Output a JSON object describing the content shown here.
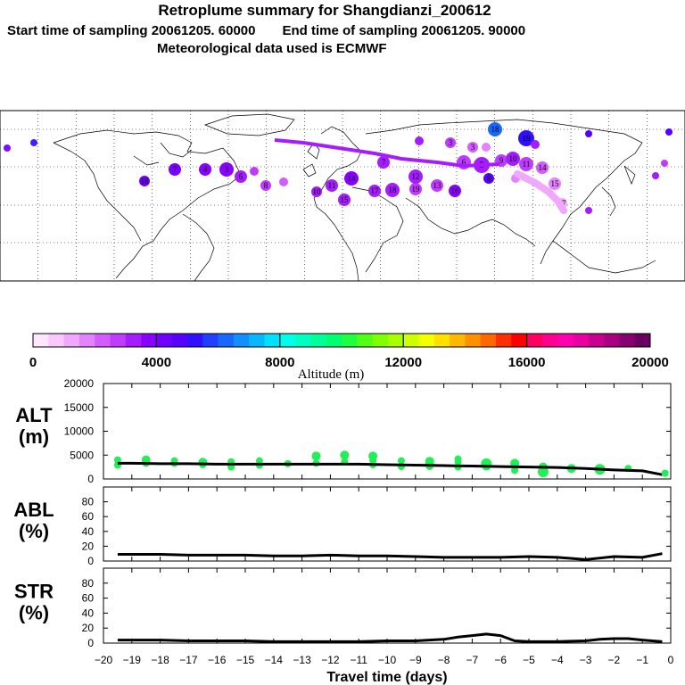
{
  "header": {
    "title": "Retroplume summary for Shangdianzi_200612",
    "start_label": "Start time of sampling 20061205. 60000",
    "end_label": "End time of sampling 20061205. 90000",
    "met_label": "Meteorological data used is ECMWF"
  },
  "colorbar": {
    "label": "Altitude (m)",
    "tick_labels": [
      "0",
      "4000",
      "8000",
      "12000",
      "16000",
      "20000"
    ],
    "colors": [
      "#ffe6ff",
      "#f8c8ff",
      "#f0a8ff",
      "#e383ff",
      "#d35cff",
      "#bf3cff",
      "#a51cff",
      "#8a00ff",
      "#7000ff",
      "#5800ff",
      "#3010ff",
      "#2040ff",
      "#1868ff",
      "#1090ff",
      "#08b8ff",
      "#00e0ff",
      "#00ffe8",
      "#00ffc0",
      "#00ff98",
      "#00ff70",
      "#20ff40",
      "#50ff18",
      "#80ff00",
      "#a8ff00",
      "#d0ff00",
      "#f4ff00",
      "#ffe000",
      "#ffb800",
      "#ff9000",
      "#ff6800",
      "#ff3000",
      "#ff0000",
      "#ff0060",
      "#ff0090",
      "#ff00b0",
      "#e800a0",
      "#c80090",
      "#a80080",
      "#880070",
      "#680060"
    ]
  },
  "map": {
    "grid": "lat-lon",
    "markers": [
      "12",
      "13",
      "16",
      "7",
      "4",
      "3",
      "6",
      "5",
      "8",
      "9",
      "10",
      "11",
      "14",
      "15",
      "17",
      "18",
      "19"
    ]
  },
  "chart_data": [
    {
      "type": "line",
      "name": "ALT",
      "ylabel": "ALT (m)",
      "ylabel_parts": [
        "ALT",
        "(m)"
      ],
      "ylim": [
        0,
        20000
      ],
      "yticks": [
        0,
        5000,
        10000,
        15000,
        20000
      ],
      "x": [
        -19.5,
        -19,
        -18,
        -17,
        -16,
        -15,
        -14,
        -13,
        -12,
        -11,
        -10,
        -9,
        -8,
        -7,
        -6,
        -5,
        -4,
        -3,
        -2,
        -1,
        -0.3
      ],
      "series": [
        {
          "name": "mean",
          "values": [
            3300,
            3300,
            3200,
            3200,
            3100,
            3100,
            3100,
            3100,
            3100,
            3100,
            3000,
            2900,
            2800,
            2700,
            2600,
            2500,
            2400,
            2200,
            1900,
            1700,
            900
          ]
        }
      ],
      "scatter": {
        "x": [
          -19.5,
          -19.5,
          -18.5,
          -18.5,
          -17.5,
          -17.5,
          -16.5,
          -16.5,
          -15.5,
          -15.5,
          -14.5,
          -14.5,
          -13.5,
          -12.5,
          -12.5,
          -11.5,
          -11.5,
          -10.5,
          -10.5,
          -10.5,
          -9.5,
          -9.5,
          -8.5,
          -8.5,
          -8.5,
          -7.5,
          -7.5,
          -7.5,
          -6.5,
          -6.5,
          -5.5,
          -5.5,
          -4.5,
          -4.5,
          -3.5,
          -2.5,
          -1.5,
          -0.2
        ],
        "y": [
          4000,
          2900,
          4000,
          3300,
          3800,
          3300,
          3500,
          3000,
          3600,
          2500,
          3800,
          2900,
          3200,
          4800,
          3300,
          5000,
          3600,
          4800,
          3900,
          3000,
          3800,
          2600,
          3700,
          3100,
          2600,
          4200,
          3600,
          2500,
          3200,
          2700,
          3300,
          1800,
          2500,
          1500,
          2200,
          2000,
          2200,
          1200
        ],
        "sizes": [
          4,
          4,
          5,
          4,
          4,
          4,
          5,
          4,
          4,
          4,
          4,
          4,
          4,
          5,
          4,
          5,
          4,
          5,
          4,
          4,
          4,
          4,
          5,
          5,
          4,
          4,
          4,
          4,
          6,
          5,
          5,
          4,
          5,
          6,
          5,
          6,
          4,
          4
        ]
      }
    },
    {
      "type": "line",
      "name": "ABL",
      "ylabel": "ABL (%)",
      "ylabel_parts": [
        "ABL",
        "(%)"
      ],
      "ylim": [
        0,
        100
      ],
      "yticks": [
        0,
        20,
        40,
        60,
        80
      ],
      "x": [
        -19.5,
        -19,
        -18,
        -17,
        -16,
        -15,
        -14,
        -13,
        -12,
        -11,
        -10,
        -9,
        -8,
        -7,
        -6,
        -5,
        -4,
        -3,
        -2.5,
        -2,
        -1,
        -0.3
      ],
      "series": [
        {
          "name": "ABL",
          "values": [
            9,
            9,
            9,
            8,
            8,
            8,
            7,
            7,
            8,
            7,
            7,
            6,
            5,
            5,
            5,
            6,
            5,
            2,
            4,
            6,
            5,
            10
          ]
        }
      ]
    },
    {
      "type": "line",
      "name": "STR",
      "ylabel": "STR (%)",
      "ylabel_parts": [
        "STR",
        "(%)"
      ],
      "ylim": [
        0,
        100
      ],
      "yticks": [
        0,
        20,
        40,
        60,
        80
      ],
      "xlabel": "Travel time (days)",
      "xlim": [
        -20,
        0
      ],
      "xticks": [
        -20,
        -19,
        -18,
        -17,
        -16,
        -15,
        -14,
        -13,
        -12,
        -11,
        -10,
        -9,
        -8,
        -7,
        -6,
        -5,
        -4,
        -3,
        -2,
        -1,
        0
      ],
      "xtick_labels": [
        "−20",
        "−19",
        "−18",
        "−17",
        "−16",
        "−15",
        "−14",
        "−13",
        "−12",
        "−11",
        "−10",
        "−9",
        "−8",
        "−7",
        "−6",
        "−5",
        "−4",
        "−3",
        "−2",
        "−1",
        "0"
      ],
      "x": [
        -19.5,
        -19,
        -18,
        -17,
        -16,
        -15,
        -14,
        -13,
        -12,
        -11,
        -10,
        -9,
        -8,
        -7.5,
        -7,
        -6.5,
        -6,
        -5.5,
        -5,
        -4,
        -3,
        -2.5,
        -2,
        -1.5,
        -1,
        -0.3
      ],
      "series": [
        {
          "name": "STR",
          "values": [
            4,
            4,
            4,
            3,
            3,
            3,
            2,
            2,
            2,
            2,
            3,
            3,
            5,
            8,
            10,
            12,
            10,
            3,
            2,
            2,
            3,
            5,
            6,
            6,
            4,
            2
          ]
        }
      ]
    }
  ]
}
